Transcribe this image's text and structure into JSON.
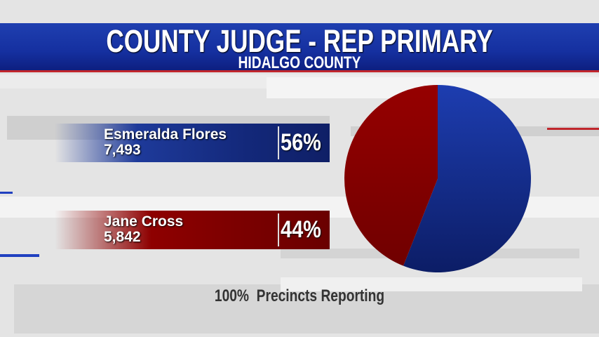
{
  "header": {
    "title": "COUNTY JUDGE - REP PRIMARY",
    "subtitle": "HIDALGO COUNTY"
  },
  "candidates": [
    {
      "name": "Esmeralda Flores",
      "votes": "7,493",
      "percent": "56%"
    },
    {
      "name": "Jane Cross",
      "votes": "5,842",
      "percent": "44%"
    }
  ],
  "footer": {
    "reporting": "100%  Precincts Reporting"
  },
  "chart_data": {
    "type": "pie",
    "categories": [
      "Esmeralda Flores",
      "Jane Cross"
    ],
    "values": [
      56,
      44
    ],
    "colors": [
      "#1a36a0",
      "#8a0000"
    ]
  }
}
